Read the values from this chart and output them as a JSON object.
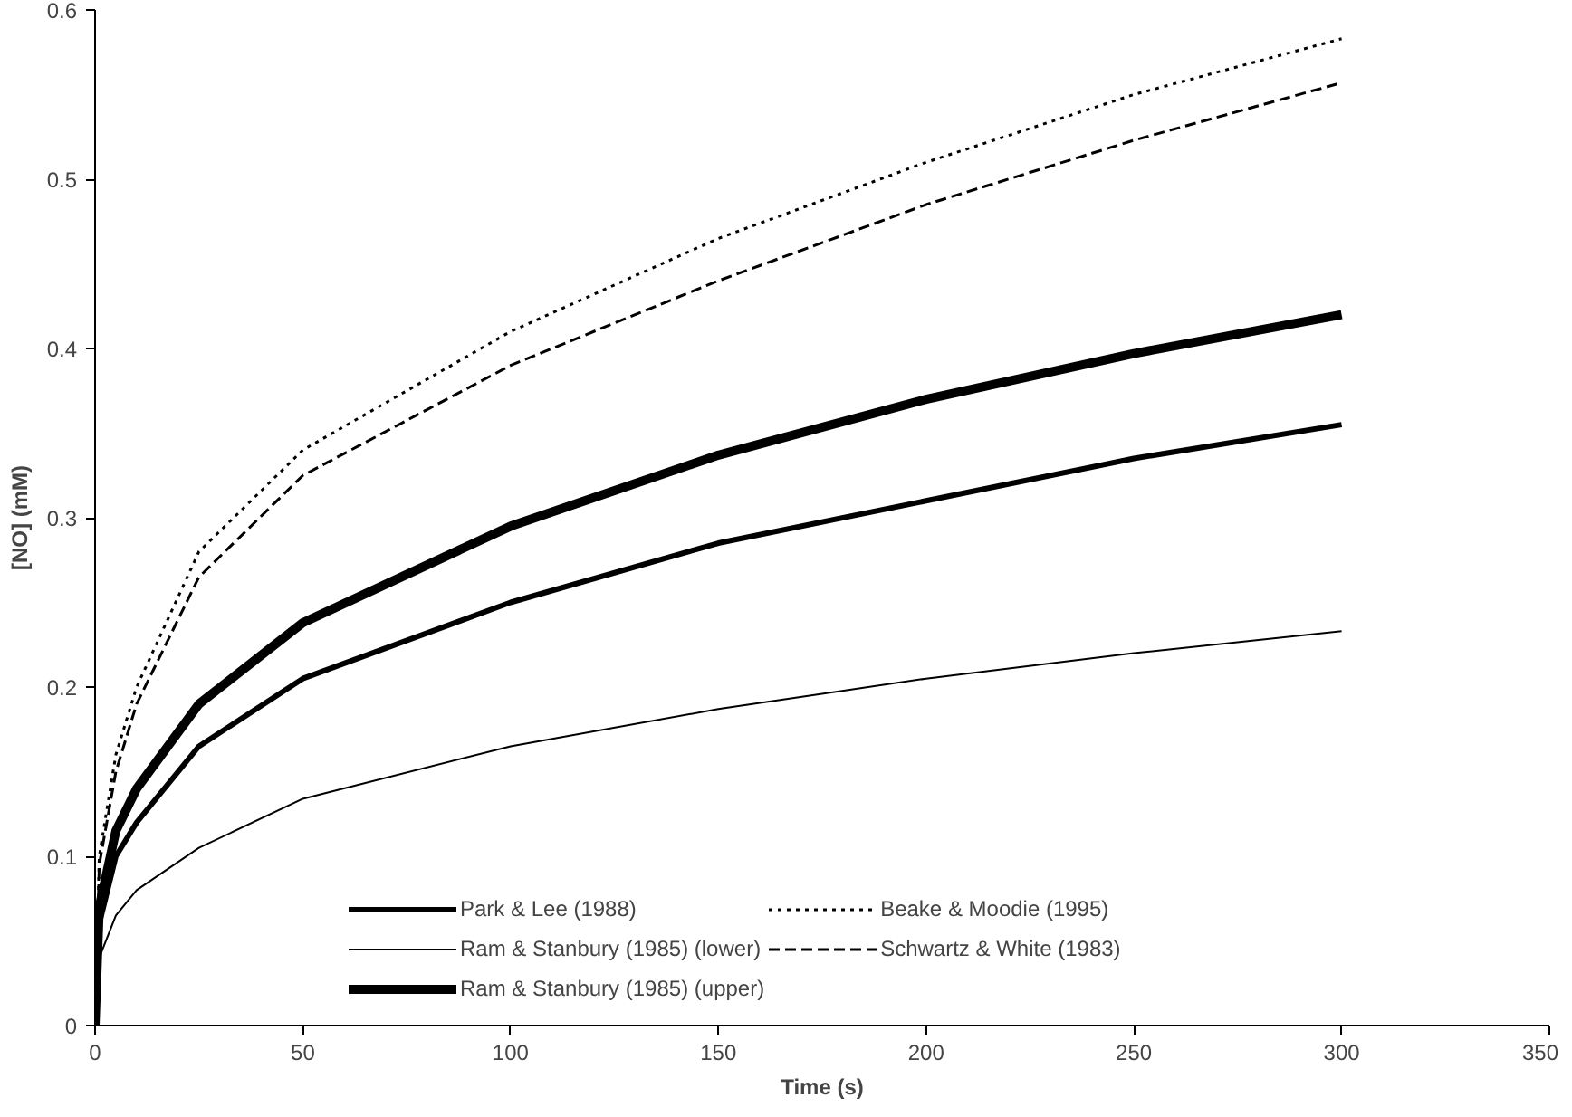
{
  "chart_data": {
    "type": "line",
    "xlabel": "Time (s)",
    "ylabel": "[NO] (mM)",
    "x": [
      0,
      1,
      5,
      10,
      25,
      50,
      100,
      150,
      200,
      250,
      300
    ],
    "series": [
      {
        "name": "Park & Lee (1988)",
        "color": "#000000",
        "line_style": "solid",
        "values": [
          0,
          0.06,
          0.1,
          0.12,
          0.165,
          0.205,
          0.25,
          0.285,
          0.31,
          0.335,
          0.355
        ]
      },
      {
        "name": "Ram & Stanbury (1985) (lower)",
        "color": "#000000",
        "line_style": "solid",
        "values": [
          0,
          0.04,
          0.065,
          0.08,
          0.105,
          0.134,
          0.165,
          0.187,
          0.205,
          0.22,
          0.233
        ]
      },
      {
        "name": "Ram & Stanbury (1985) (upper)",
        "color": "#000000",
        "line_style": "solid",
        "values": [
          0,
          0.07,
          0.115,
          0.14,
          0.19,
          0.238,
          0.295,
          0.337,
          0.37,
          0.397,
          0.42
        ]
      },
      {
        "name": "Beake & Moodie (1995)",
        "color": "#000000",
        "line_style": "dotted",
        "values": [
          0,
          0.1,
          0.16,
          0.2,
          0.28,
          0.34,
          0.41,
          0.465,
          0.51,
          0.55,
          0.583
        ]
      },
      {
        "name": "Schwartz & White (1983)",
        "color": "#000000",
        "line_style": "dashed",
        "values": [
          0,
          0.095,
          0.15,
          0.19,
          0.265,
          0.325,
          0.39,
          0.44,
          0.485,
          0.523,
          0.557
        ]
      }
    ],
    "xlim": [
      0,
      350
    ],
    "xticks": [
      0,
      50,
      100,
      150,
      200,
      250,
      300,
      350
    ],
    "ylim": [
      0,
      0.6
    ],
    "yticks": [
      0,
      0.1,
      0.2,
      0.3,
      0.4,
      0.5,
      0.6
    ],
    "grid": false,
    "legend": "bottom",
    "marker": "none"
  }
}
